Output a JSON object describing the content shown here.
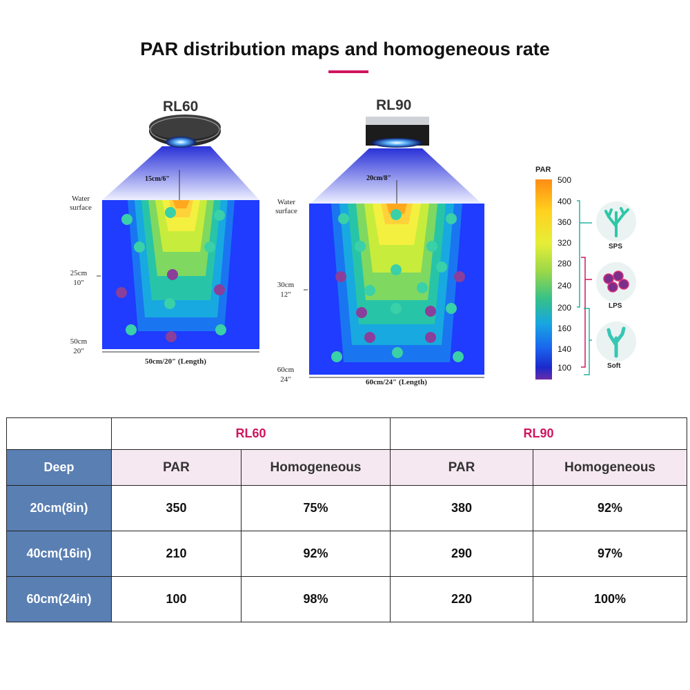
{
  "title": "PAR distribution maps and homogeneous rate",
  "colors": {
    "accent": "#d0155f",
    "deep_header": "#5a7fb3",
    "subheader": "#f6e8f0"
  },
  "rl60_map": {
    "model": "RL60",
    "distance_label": "15cm/6″",
    "water_surface": [
      "Water",
      "surface"
    ],
    "depth_mid": [
      "25cm",
      "10″"
    ],
    "depth_bottom": [
      "50cm",
      "20″"
    ],
    "length_label": "50cm/20″ (Length)"
  },
  "rl90_map": {
    "model": "RL90",
    "distance_label": "20cm/8″",
    "water_surface": [
      "Water",
      "surface"
    ],
    "depth_mid": [
      "30cm",
      "12″"
    ],
    "depth_bottom": [
      "60cm",
      "24″"
    ],
    "length_label": "60cm/24″ (Length)"
  },
  "par_scale": {
    "label": "PAR",
    "values": [
      "500",
      "400",
      "360",
      "320",
      "280",
      "240",
      "200",
      "160",
      "140",
      "100"
    ],
    "corals": [
      "SPS",
      "LPS",
      "Soft"
    ]
  },
  "table": {
    "corner": "",
    "models": [
      "RL60",
      "RL90"
    ],
    "deep_header": "Deep",
    "par_header": "PAR",
    "homogeneous_header": "Homogeneous",
    "rows": [
      {
        "deep": "20cm(8in)",
        "rl60_par": "350",
        "rl60_hom": "75%",
        "rl90_par": "380",
        "rl90_hom": "92%"
      },
      {
        "deep": "40cm(16in)",
        "rl60_par": "210",
        "rl60_hom": "92%",
        "rl90_par": "290",
        "rl90_hom": "97%"
      },
      {
        "deep": "60cm(24in)",
        "rl60_par": "100",
        "rl60_hom": "98%",
        "rl90_par": "220",
        "rl90_hom": "100%"
      }
    ]
  }
}
